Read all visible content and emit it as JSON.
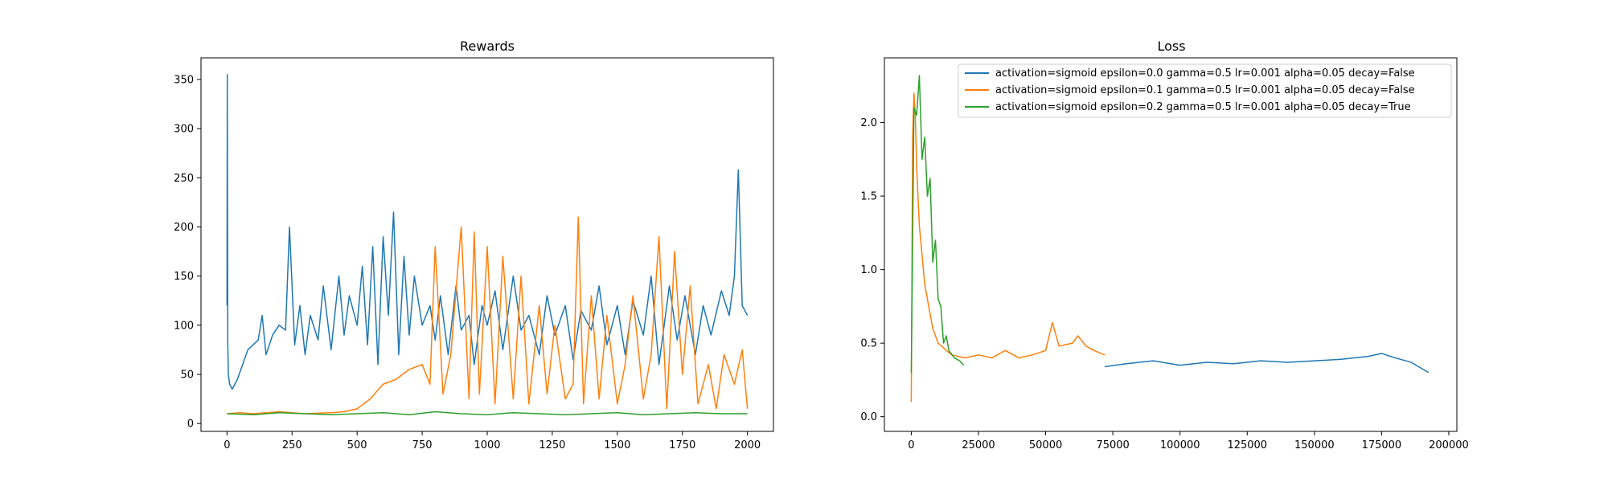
{
  "figure": {
    "colors": [
      "#1f77b4",
      "#ff7f0e",
      "#2ca02c"
    ]
  },
  "chart_data": [
    {
      "type": "line",
      "title": "Rewards",
      "xlabel": "",
      "ylabel": "",
      "xlim": [
        -100,
        2100
      ],
      "ylim": [
        -8,
        372
      ],
      "xticks": [
        0,
        250,
        500,
        750,
        1000,
        1250,
        1500,
        1750,
        2000
      ],
      "yticks": [
        0,
        50,
        100,
        150,
        200,
        250,
        300,
        350
      ],
      "grid": false,
      "series": [
        {
          "color": "#1f77b4",
          "x": [
            0,
            1,
            3,
            5,
            10,
            20,
            40,
            60,
            80,
            100,
            120,
            135,
            150,
            175,
            200,
            225,
            240,
            260,
            280,
            300,
            320,
            350,
            370,
            400,
            430,
            450,
            470,
            500,
            520,
            540,
            560,
            580,
            600,
            620,
            640,
            660,
            680,
            700,
            720,
            750,
            780,
            800,
            820,
            850,
            880,
            900,
            930,
            950,
            980,
            1000,
            1030,
            1060,
            1100,
            1130,
            1160,
            1200,
            1230,
            1260,
            1300,
            1330,
            1360,
            1400,
            1430,
            1460,
            1500,
            1530,
            1560,
            1600,
            1630,
            1660,
            1700,
            1730,
            1760,
            1800,
            1830,
            1860,
            1900,
            1930,
            1950,
            1965,
            1980,
            2000
          ],
          "y": [
            120,
            355,
            80,
            50,
            40,
            35,
            45,
            60,
            75,
            80,
            85,
            110,
            70,
            90,
            100,
            95,
            200,
            80,
            120,
            70,
            110,
            85,
            140,
            75,
            150,
            90,
            130,
            100,
            160,
            80,
            180,
            60,
            190,
            110,
            215,
            70,
            170,
            90,
            150,
            100,
            120,
            85,
            130,
            70,
            140,
            95,
            110,
            60,
            120,
            100,
            135,
            75,
            150,
            95,
            110,
            70,
            130,
            90,
            120,
            65,
            115,
            95,
            140,
            80,
            120,
            70,
            125,
            90,
            150,
            60,
            140,
            85,
            130,
            70,
            120,
            90,
            135,
            110,
            150,
            258,
            120,
            110
          ]
        },
        {
          "color": "#ff7f0e",
          "x": [
            0,
            50,
            100,
            200,
            300,
            400,
            450,
            500,
            550,
            600,
            650,
            700,
            750,
            780,
            800,
            830,
            860,
            900,
            930,
            950,
            970,
            1000,
            1030,
            1060,
            1100,
            1130,
            1160,
            1200,
            1230,
            1260,
            1300,
            1330,
            1350,
            1370,
            1400,
            1430,
            1460,
            1500,
            1530,
            1560,
            1600,
            1630,
            1660,
            1690,
            1720,
            1750,
            1780,
            1810,
            1850,
            1880,
            1910,
            1950,
            1980,
            2000
          ],
          "y": [
            10,
            11,
            10,
            12,
            10,
            11,
            12,
            15,
            25,
            40,
            45,
            55,
            60,
            40,
            180,
            30,
            70,
            200,
            25,
            195,
            30,
            180,
            20,
            170,
            25,
            150,
            20,
            120,
            30,
            100,
            25,
            40,
            210,
            20,
            130,
            25,
            110,
            20,
            60,
            130,
            25,
            70,
            190,
            15,
            175,
            50,
            140,
            20,
            60,
            15,
            70,
            40,
            75,
            15
          ]
        },
        {
          "color": "#2ca02c",
          "x": [
            0,
            100,
            200,
            300,
            400,
            500,
            600,
            700,
            800,
            900,
            1000,
            1100,
            1200,
            1300,
            1400,
            1500,
            1600,
            1700,
            1800,
            1900,
            2000
          ],
          "y": [
            10,
            9,
            11,
            10,
            9,
            10,
            11,
            9,
            12,
            10,
            9,
            11,
            10,
            9,
            10,
            11,
            9,
            10,
            11,
            10,
            10
          ]
        }
      ]
    },
    {
      "type": "line",
      "title": "Loss",
      "xlabel": "",
      "ylabel": "",
      "xlim": [
        -10000,
        203000
      ],
      "ylim": [
        -0.1,
        2.44
      ],
      "xticks": [
        0,
        25000,
        50000,
        75000,
        100000,
        125000,
        150000,
        175000,
        200000
      ],
      "yticks": [
        0.0,
        0.5,
        1.0,
        1.5,
        2.0
      ],
      "yticklabels": [
        "0.0",
        "0.5",
        "1.0",
        "1.5",
        "2.0"
      ],
      "grid": false,
      "legend_position": "top-right",
      "series": [
        {
          "name": "activation=sigmoid epsilon=0.0 gamma=0.5 lr=0.001 alpha=0.05 decay=False",
          "color": "#1f77b4",
          "x": [
            72000,
            80000,
            90000,
            100000,
            110000,
            120000,
            130000,
            140000,
            150000,
            160000,
            170000,
            175000,
            180000,
            186000,
            192500
          ],
          "y": [
            0.34,
            0.36,
            0.38,
            0.35,
            0.37,
            0.36,
            0.38,
            0.37,
            0.38,
            0.39,
            0.41,
            0.43,
            0.4,
            0.37,
            0.3
          ]
        },
        {
          "name": "activation=sigmoid epsilon=0.1 gamma=0.5 lr=0.001 alpha=0.05 decay=False",
          "color": "#ff7f0e",
          "x": [
            0,
            500,
            1000,
            1500,
            2000,
            3000,
            5000,
            8000,
            10000,
            15000,
            20000,
            25000,
            30000,
            35000,
            40000,
            45000,
            50000,
            52500,
            55000,
            60000,
            62000,
            65000,
            68000,
            72000
          ],
          "y": [
            0.1,
            1.9,
            2.2,
            2.05,
            1.7,
            1.3,
            0.9,
            0.6,
            0.5,
            0.42,
            0.4,
            0.42,
            0.4,
            0.45,
            0.4,
            0.42,
            0.45,
            0.64,
            0.48,
            0.5,
            0.55,
            0.48,
            0.45,
            0.42
          ]
        },
        {
          "name": "activation=sigmoid epsilon=0.2 gamma=0.5 lr=0.001 alpha=0.05 decay=True",
          "color": "#2ca02c",
          "x": [
            0,
            500,
            1000,
            2000,
            3000,
            4000,
            5000,
            6000,
            7000,
            8000,
            9000,
            10000,
            11000,
            12000,
            13000,
            14000,
            16000,
            18000,
            19500
          ],
          "y": [
            0.3,
            1.2,
            2.1,
            2.05,
            2.32,
            1.75,
            1.9,
            1.5,
            1.62,
            1.05,
            1.2,
            0.8,
            0.75,
            0.5,
            0.55,
            0.45,
            0.4,
            0.38,
            0.35
          ]
        }
      ]
    }
  ]
}
